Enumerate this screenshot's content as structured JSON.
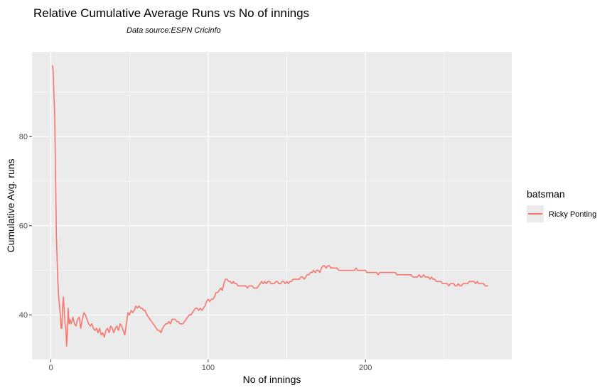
{
  "chart_data": {
    "type": "line",
    "title": "Relative Cumulative Average Runs vs No of innings",
    "subtitle": "Data source:ESPN Cricinfo",
    "xlabel": "No of innings",
    "ylabel": "Cumulative Avg. runs",
    "xlim": [
      -12,
      293
    ],
    "ylim": [
      30,
      99
    ],
    "xticks": [
      0,
      100,
      200
    ],
    "yticks": [
      40,
      60,
      80
    ],
    "grid": true,
    "legend": {
      "title": "batsman",
      "placement": "right"
    },
    "series": [
      {
        "name": "Ricky Ponting",
        "color": "#f8766d",
        "points": [
          [
            1,
            96
          ],
          [
            1.5,
            94.5
          ],
          [
            2,
            89
          ],
          [
            2.5,
            84
          ],
          [
            3,
            71
          ],
          [
            3.5,
            58
          ],
          [
            4,
            52
          ],
          [
            4.5,
            47
          ],
          [
            5,
            44
          ],
          [
            5.5,
            42
          ],
          [
            6,
            40
          ],
          [
            6.5,
            37
          ],
          [
            7,
            37
          ],
          [
            7.5,
            42
          ],
          [
            8,
            44
          ],
          [
            8.5,
            41
          ],
          [
            9,
            38
          ],
          [
            9.5,
            37
          ],
          [
            10,
            33
          ],
          [
            10.5,
            36
          ],
          [
            11,
            41.5
          ],
          [
            11.5,
            38
          ],
          [
            12,
            39
          ],
          [
            13,
            38
          ],
          [
            14,
            39.5
          ],
          [
            15,
            38
          ],
          [
            16,
            37.5
          ],
          [
            17,
            39
          ],
          [
            18,
            39.5
          ],
          [
            19,
            37
          ],
          [
            20,
            39
          ],
          [
            21,
            40.5
          ],
          [
            22,
            40
          ],
          [
            23,
            39
          ],
          [
            24,
            38
          ],
          [
            25,
            37.5
          ],
          [
            26,
            38
          ],
          [
            27,
            37
          ],
          [
            28,
            36.5
          ],
          [
            29,
            37
          ],
          [
            30,
            36
          ],
          [
            31,
            37
          ],
          [
            32,
            35.5
          ],
          [
            33,
            36
          ],
          [
            34,
            35
          ],
          [
            35,
            36.5
          ],
          [
            36,
            37
          ],
          [
            37,
            36
          ],
          [
            38,
            37.5
          ],
          [
            39,
            37
          ],
          [
            40,
            36
          ],
          [
            41,
            37
          ],
          [
            42,
            37.5
          ],
          [
            43,
            36.5
          ],
          [
            44,
            38
          ],
          [
            45,
            37.5
          ],
          [
            46,
            36.5
          ],
          [
            47,
            35.5
          ],
          [
            48,
            38
          ],
          [
            49,
            40.5
          ],
          [
            50,
            40
          ],
          [
            51,
            41
          ],
          [
            52,
            40.5
          ],
          [
            53,
            41
          ],
          [
            54,
            42
          ],
          [
            55,
            41.5
          ],
          [
            56,
            42
          ],
          [
            57,
            41.5
          ],
          [
            58,
            41.5
          ],
          [
            59,
            41
          ],
          [
            60,
            41
          ],
          [
            61,
            40
          ],
          [
            62,
            39.5
          ],
          [
            63,
            39
          ],
          [
            64,
            38.5
          ],
          [
            65,
            38
          ],
          [
            66,
            37.5
          ],
          [
            67,
            37
          ],
          [
            68,
            36.5
          ],
          [
            69,
            36.5
          ],
          [
            70,
            36
          ],
          [
            71,
            37
          ],
          [
            72,
            37.5
          ],
          [
            73,
            38
          ],
          [
            74,
            38
          ],
          [
            75,
            38.5
          ],
          [
            76,
            38
          ],
          [
            77,
            39
          ],
          [
            78,
            39
          ],
          [
            79,
            39
          ],
          [
            80,
            38.5
          ],
          [
            81,
            38.5
          ],
          [
            82,
            38
          ],
          [
            83,
            38
          ],
          [
            84,
            38
          ],
          [
            85,
            38.5
          ],
          [
            86,
            39
          ],
          [
            87,
            39.5
          ],
          [
            88,
            40
          ],
          [
            89,
            40
          ],
          [
            90,
            40.5
          ],
          [
            91,
            41
          ],
          [
            92,
            41.5
          ],
          [
            93,
            41.5
          ],
          [
            94,
            41
          ],
          [
            95,
            41.5
          ],
          [
            96,
            41
          ],
          [
            97,
            41.5
          ],
          [
            98,
            42
          ],
          [
            99,
            43
          ],
          [
            100,
            43.5
          ],
          [
            101,
            43
          ],
          [
            102,
            43.5
          ],
          [
            103,
            43.5
          ],
          [
            104,
            44
          ],
          [
            105,
            45
          ],
          [
            106,
            45
          ],
          [
            107,
            45.5
          ],
          [
            108,
            46
          ],
          [
            109,
            45.5
          ],
          [
            110,
            47
          ],
          [
            111,
            48
          ],
          [
            112,
            48
          ],
          [
            113,
            47.5
          ],
          [
            114,
            47.5
          ],
          [
            115,
            47
          ],
          [
            116,
            47.5
          ],
          [
            117,
            47
          ],
          [
            118,
            47
          ],
          [
            119,
            46.5
          ],
          [
            120,
            46.5
          ],
          [
            121,
            46.5
          ],
          [
            122,
            46.5
          ],
          [
            123,
            46.5
          ],
          [
            124,
            46.5
          ],
          [
            125,
            46
          ],
          [
            126,
            46.5
          ],
          [
            127,
            46.5
          ],
          [
            128,
            46.5
          ],
          [
            129,
            46
          ],
          [
            130,
            46
          ],
          [
            131,
            46
          ],
          [
            132,
            46.5
          ],
          [
            133,
            47
          ],
          [
            134,
            47.5
          ],
          [
            135,
            47
          ],
          [
            136,
            47.5
          ],
          [
            137,
            47
          ],
          [
            138,
            47.5
          ],
          [
            139,
            47.5
          ],
          [
            140,
            47
          ],
          [
            141,
            47
          ],
          [
            142,
            47
          ],
          [
            143,
            47.5
          ],
          [
            144,
            47.5
          ],
          [
            145,
            47
          ],
          [
            146,
            47
          ],
          [
            147,
            47.5
          ],
          [
            148,
            47.5
          ],
          [
            149,
            47
          ],
          [
            150,
            47.5
          ],
          [
            151,
            47
          ],
          [
            152,
            47.5
          ],
          [
            153,
            47.5
          ],
          [
            154,
            48
          ],
          [
            155,
            48
          ],
          [
            156,
            48
          ],
          [
            157,
            48
          ],
          [
            158,
            48
          ],
          [
            159,
            48.5
          ],
          [
            160,
            48.5
          ],
          [
            161,
            48
          ],
          [
            162,
            48.5
          ],
          [
            163,
            49
          ],
          [
            164,
            49
          ],
          [
            165,
            49.5
          ],
          [
            166,
            49.5
          ],
          [
            167,
            50
          ],
          [
            168,
            49.5
          ],
          [
            169,
            50
          ],
          [
            170,
            50
          ],
          [
            171,
            49.5
          ],
          [
            172,
            50.5
          ],
          [
            173,
            51
          ],
          [
            174,
            51
          ],
          [
            175,
            50.5
          ],
          [
            176,
            51
          ],
          [
            177,
            51
          ],
          [
            178,
            50.5
          ],
          [
            179,
            50.5
          ],
          [
            180,
            50.5
          ],
          [
            181,
            50.5
          ],
          [
            182,
            50.5
          ],
          [
            183,
            50
          ],
          [
            184,
            50
          ],
          [
            185,
            50
          ],
          [
            186,
            50
          ],
          [
            187,
            50
          ],
          [
            188,
            50
          ],
          [
            189,
            50
          ],
          [
            190,
            50
          ],
          [
            191,
            50
          ],
          [
            192,
            50
          ],
          [
            193,
            50
          ],
          [
            194,
            50.5
          ],
          [
            195,
            50
          ],
          [
            196,
            50
          ],
          [
            197,
            50
          ],
          [
            198,
            50
          ],
          [
            199,
            50
          ],
          [
            200,
            50
          ],
          [
            201,
            49.5
          ],
          [
            202,
            49.5
          ],
          [
            203,
            49.5
          ],
          [
            204,
            49.5
          ],
          [
            205,
            49.5
          ],
          [
            206,
            49.5
          ],
          [
            207,
            49.5
          ],
          [
            208,
            49
          ],
          [
            209,
            49.5
          ],
          [
            210,
            49.5
          ],
          [
            211,
            49.5
          ],
          [
            212,
            49.5
          ],
          [
            213,
            49.5
          ],
          [
            214,
            49.5
          ],
          [
            215,
            49.5
          ],
          [
            216,
            49.5
          ],
          [
            217,
            49.5
          ],
          [
            218,
            49.5
          ],
          [
            219,
            49.5
          ],
          [
            220,
            49
          ],
          [
            221,
            49
          ],
          [
            222,
            49
          ],
          [
            223,
            49
          ],
          [
            224,
            49
          ],
          [
            225,
            49
          ],
          [
            226,
            49
          ],
          [
            227,
            49
          ],
          [
            228,
            49
          ],
          [
            229,
            49
          ],
          [
            230,
            48.5
          ],
          [
            231,
            48.5
          ],
          [
            232,
            48.5
          ],
          [
            233,
            48.5
          ],
          [
            234,
            49
          ],
          [
            235,
            48.5
          ],
          [
            236,
            48.5
          ],
          [
            237,
            49
          ],
          [
            238,
            48.5
          ],
          [
            239,
            48.5
          ],
          [
            240,
            48.5
          ],
          [
            241,
            48
          ],
          [
            242,
            48.5
          ],
          [
            243,
            48
          ],
          [
            244,
            48
          ],
          [
            245,
            47.5
          ],
          [
            246,
            47.5
          ],
          [
            247,
            47.5
          ],
          [
            248,
            47.5
          ],
          [
            249,
            47
          ],
          [
            250,
            47
          ],
          [
            251,
            47
          ],
          [
            252,
            47
          ],
          [
            253,
            46.5
          ],
          [
            254,
            47
          ],
          [
            255,
            47
          ],
          [
            256,
            47
          ],
          [
            257,
            46.5
          ],
          [
            258,
            46.5
          ],
          [
            259,
            47
          ],
          [
            260,
            46.5
          ],
          [
            261,
            46.5
          ],
          [
            262,
            47
          ],
          [
            263,
            47
          ],
          [
            264,
            47
          ],
          [
            265,
            47
          ],
          [
            266,
            47.5
          ],
          [
            267,
            47.5
          ],
          [
            268,
            47.5
          ],
          [
            269,
            47.5
          ],
          [
            270,
            47
          ],
          [
            271,
            47.5
          ],
          [
            272,
            47
          ],
          [
            273,
            47
          ],
          [
            274,
            47
          ],
          [
            275,
            47
          ],
          [
            276,
            46.5
          ],
          [
            277,
            46.5
          ],
          [
            278,
            46.5
          ]
        ]
      }
    ]
  }
}
